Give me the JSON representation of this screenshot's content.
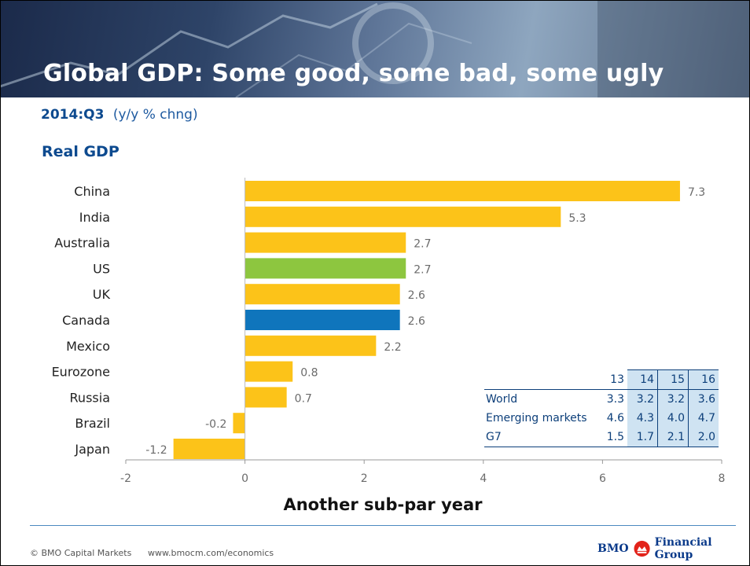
{
  "header": {
    "title": "Global GDP: Some good, some bad, some ugly"
  },
  "subtitle": {
    "period": "2014:Q3",
    "unit": "(y/y % chng)"
  },
  "section_label": "Real GDP",
  "colors": {
    "default_bar": "#fcc319",
    "us_bar": "#8dc63f",
    "canada_bar": "#0f75bc",
    "accent_blue": "#0d4a8f"
  },
  "chart_data": {
    "type": "bar",
    "orientation": "horizontal",
    "categories": [
      "China",
      "India",
      "Australia",
      "US",
      "UK",
      "Canada",
      "Mexico",
      "Eurozone",
      "Russia",
      "Brazil",
      "Japan"
    ],
    "values": [
      7.3,
      5.3,
      2.7,
      2.7,
      2.6,
      2.6,
      2.2,
      0.8,
      0.7,
      -0.2,
      -1.2
    ],
    "value_labels": [
      "7.3",
      "5.3",
      "2.7",
      "2.7",
      "2.6",
      "2.6",
      "2.2",
      "0.8",
      "0.7",
      "-0.2",
      "-1.2"
    ],
    "bar_colors": [
      "default",
      "default",
      "default",
      "us",
      "default",
      "canada",
      "default",
      "default",
      "default",
      "default",
      "default"
    ],
    "xlim": [
      -2,
      8
    ],
    "x_ticks": [
      "-2",
      "0",
      "2",
      "4",
      "6",
      "8"
    ],
    "xlabel": "Another sub-par year",
    "grid": false
  },
  "inset_table": {
    "columns": [
      "13",
      "14",
      "15",
      "16"
    ],
    "rows": [
      {
        "label": "World",
        "values": [
          "3.3",
          "3.2",
          "3.2",
          "3.6"
        ]
      },
      {
        "label": "Emerging markets",
        "values": [
          "4.6",
          "4.3",
          "4.0",
          "4.7"
        ]
      },
      {
        "label": "G7",
        "values": [
          "1.5",
          "1.7",
          "2.1",
          "2.0"
        ]
      }
    ]
  },
  "footer": {
    "copyright": "© BMO Capital Markets",
    "website": "www.bmocm.com/economics",
    "logo_left": "BMO",
    "logo_right": "Financial Group",
    "logo_icon": "bmo-roundel-icon"
  }
}
